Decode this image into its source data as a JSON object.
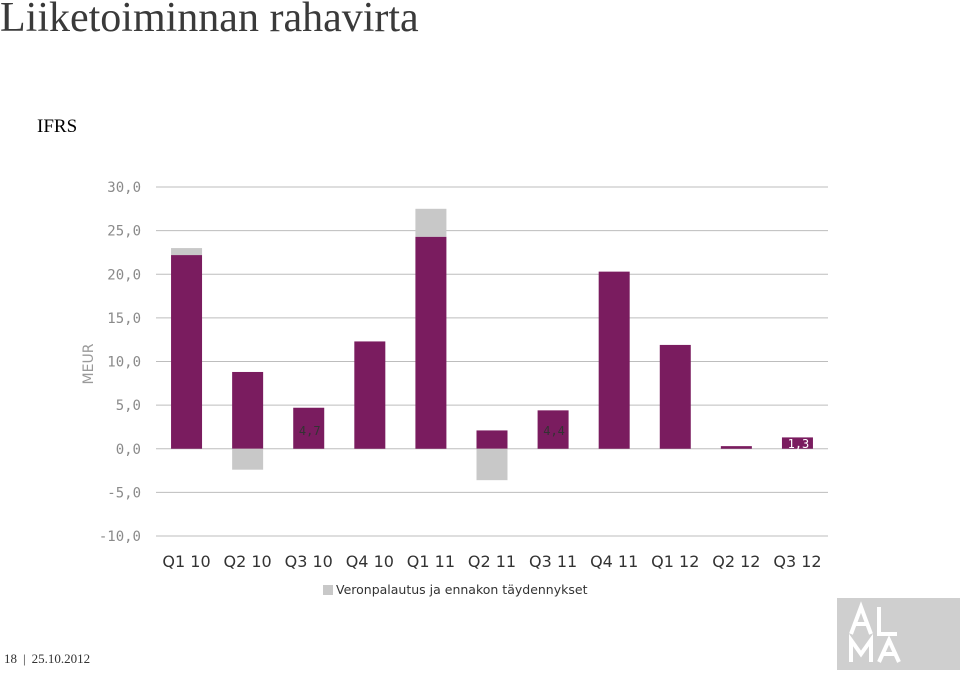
{
  "title": "Liiketoiminnan rahavirta",
  "subtitle": "IFRS",
  "footer": {
    "page": "18",
    "date": "25.10.2012"
  },
  "logo": {
    "text": "AL MA"
  },
  "colors": {
    "main": "#7a1c5f",
    "refund": "#c8c8c8",
    "grid": "#bdbdbd"
  },
  "chart_data": {
    "type": "bar",
    "ylabel": "MEUR",
    "ylim": [
      -10,
      30
    ],
    "yticks": [
      "30,0",
      "25,0",
      "20,0",
      "15,0",
      "10,0",
      "5,0",
      "0,0",
      "-5,0",
      "-10,0"
    ],
    "ytick_values": [
      30,
      25,
      20,
      15,
      10,
      5,
      0,
      -5,
      -10
    ],
    "categories": [
      "Q1 10",
      "Q2 10",
      "Q3 10",
      "Q4 10",
      "Q1 11",
      "Q2 11",
      "Q3 11",
      "Q4 11",
      "Q1 12",
      "Q2 12",
      "Q3 12"
    ],
    "series": [
      {
        "values": [
          22.2,
          8.8,
          4.7,
          12.3,
          24.3,
          2.1,
          4.4,
          20.3,
          11.9,
          0.3,
          1.3
        ]
      },
      {
        "name": "Veronpalautus ja ennakon täydennykset",
        "values": [
          0.8,
          -2.4,
          0,
          0,
          3.2,
          -3.6,
          0,
          0,
          0,
          0,
          0
        ]
      }
    ],
    "data_labels": [
      "",
      "",
      "4,7",
      "",
      "",
      "",
      "4,4",
      "",
      "",
      "",
      "1,3"
    ],
    "grid": true,
    "legend": "bottom"
  }
}
